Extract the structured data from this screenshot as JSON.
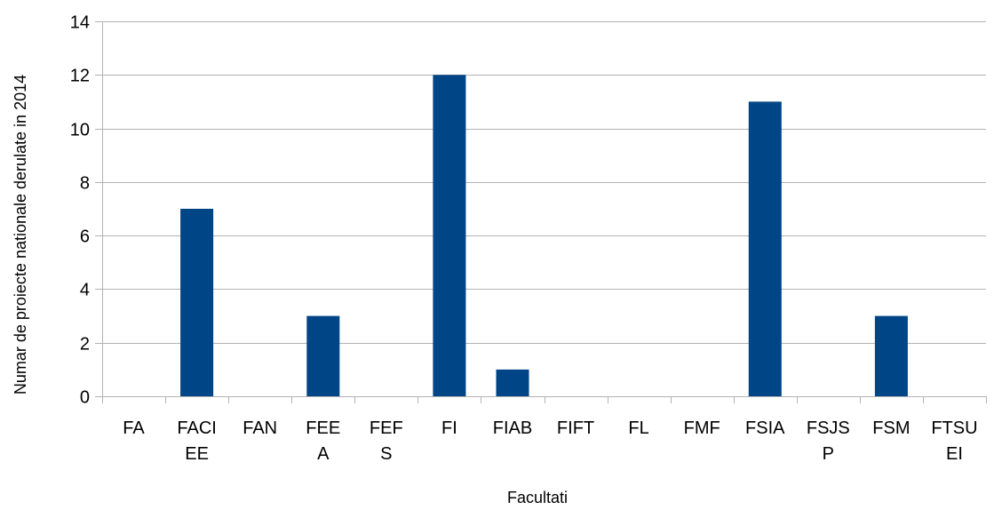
{
  "chart_data": {
    "type": "bar",
    "title": "",
    "xlabel": "Facultati",
    "ylabel": "Numar de proiecte nationale derulate in 2014",
    "categories": [
      "FA",
      "FACIEE",
      "FAN",
      "FEEA",
      "FEFS",
      "FI",
      "FIAB",
      "FIFT",
      "FL",
      "FMF",
      "FSIA",
      "FSJSP",
      "FSM",
      "FTSUEI"
    ],
    "category_label_lines": [
      [
        "FA"
      ],
      [
        "FACI",
        "EE"
      ],
      [
        "FAN"
      ],
      [
        "FEE",
        "A"
      ],
      [
        "FEF",
        "S"
      ],
      [
        "FI"
      ],
      [
        "FIAB"
      ],
      [
        "FIFT"
      ],
      [
        "FL"
      ],
      [
        "FMF"
      ],
      [
        "FSIA"
      ],
      [
        "FSJS",
        "P"
      ],
      [
        "FSM"
      ],
      [
        "FTSU",
        "EI"
      ]
    ],
    "values": [
      0,
      7,
      0,
      3,
      0,
      12,
      1,
      0,
      0,
      0,
      11,
      0,
      3,
      0
    ],
    "ylim": [
      0,
      14
    ],
    "yticks": [
      0,
      2,
      4,
      6,
      8,
      10,
      12,
      14
    ],
    "grid": true,
    "legend": "none",
    "bar_color": "#004586",
    "grid_color": "#b3b3b3"
  }
}
